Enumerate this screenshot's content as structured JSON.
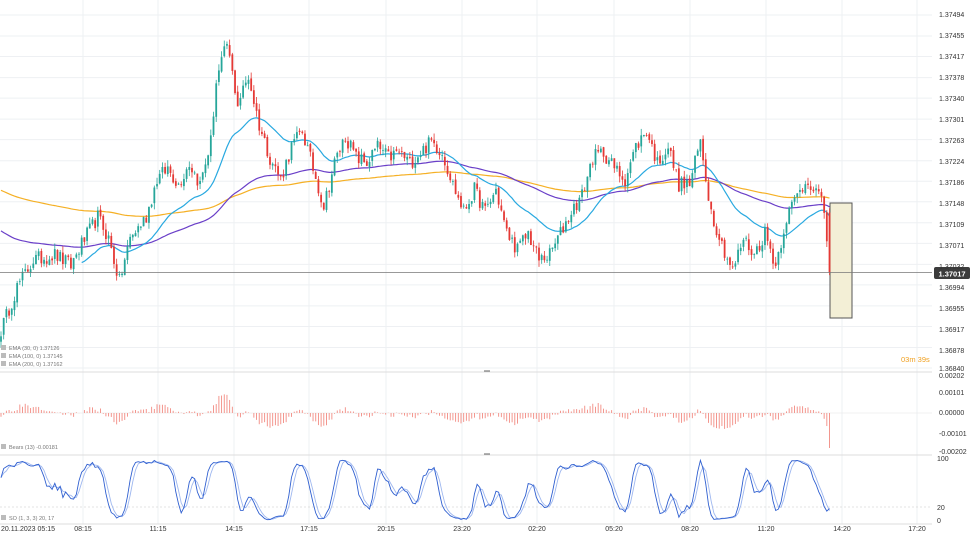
{
  "colors": {
    "bull": "#26a69a",
    "bear": "#e53935",
    "ema30": "#29a9e0",
    "ema100": "#6a3fc8",
    "ema200": "#f5b025",
    "bears_hist": "#f28b82",
    "so_k": "#2f5fd0",
    "so_d": "#9eb7ef",
    "grid": "#eef0f3",
    "axis_text": "#333333",
    "current_badge_bg": "#3c3c3c",
    "countdown": "#f0a020",
    "highlight_fill": "#f3efd6",
    "highlight_stroke": "#555555"
  },
  "main_chart": {
    "price_ticks": [
      "1.37494",
      "1.37455",
      "1.37417",
      "1.37378",
      "1.37340",
      "1.37301",
      "1.37263",
      "1.37224",
      "1.37186",
      "1.37148",
      "1.37109",
      "1.37071",
      "1.37032",
      "1.36994",
      "1.36955",
      "1.36917",
      "1.36878",
      "1.36840"
    ],
    "current_price": "1.37017",
    "countdown": "03m 39s",
    "legend": [
      "EMA (30, 0) 1.37126",
      "EMA (100, 0) 1.37145",
      "EMA (200, 0) 1.37162"
    ]
  },
  "time_axis": {
    "labels": [
      "20.11.2023 05:15",
      "08:15",
      "11:15",
      "14:15",
      "17:15",
      "20:15",
      "23:20",
      "02:20",
      "05:20",
      "08:20",
      "11:20",
      "14:20",
      "17:20"
    ]
  },
  "bears_panel": {
    "legend": "Bears (13) -0.00181",
    "ticks": [
      "0.00202",
      "0.00101",
      "0.00000",
      "-0.00101",
      "-0.00202"
    ]
  },
  "so_panel": {
    "legend": "SO (1, 3, 3) 20, 17",
    "ticks": [
      "100",
      "20",
      "0"
    ]
  },
  "chart_data": {
    "type": "candlestick",
    "x_labels": [
      "20.11.2023 05:15",
      "08:15",
      "11:15",
      "14:15",
      "17:15",
      "20:15",
      "23:20",
      "02:20",
      "05:20",
      "08:20",
      "11:20",
      "14:20",
      "17:20"
    ],
    "y_ticks": [
      1.37494,
      1.37455,
      1.37417,
      1.37378,
      1.3734,
      1.37301,
      1.37263,
      1.37224,
      1.37186,
      1.37148,
      1.37109,
      1.37071,
      1.37032,
      1.36994,
      1.36955,
      1.36917,
      1.36878,
      1.3684
    ],
    "ylim": [
      1.3684,
      1.37494
    ],
    "current_price": 1.37017,
    "close_anchors": [
      [
        0,
        1.3691
      ],
      [
        6,
        1.3699
      ],
      [
        12,
        1.3704
      ],
      [
        20,
        1.3705
      ],
      [
        26,
        1.3703
      ],
      [
        30,
        1.3707
      ],
      [
        36,
        1.3712
      ],
      [
        40,
        1.3708
      ],
      [
        44,
        1.37
      ],
      [
        48,
        1.3708
      ],
      [
        54,
        1.3712
      ],
      [
        58,
        1.3719
      ],
      [
        62,
        1.3721
      ],
      [
        66,
        1.3718
      ],
      [
        70,
        1.3722
      ],
      [
        74,
        1.3718
      ],
      [
        78,
        1.3726
      ],
      [
        80,
        1.3737
      ],
      [
        84,
        1.3744
      ],
      [
        88,
        1.3733
      ],
      [
        92,
        1.3738
      ],
      [
        96,
        1.3729
      ],
      [
        100,
        1.3723
      ],
      [
        104,
        1.3719
      ],
      [
        108,
        1.3725
      ],
      [
        112,
        1.3728
      ],
      [
        116,
        1.3721
      ],
      [
        120,
        1.3714
      ],
      [
        124,
        1.3722
      ],
      [
        128,
        1.3727
      ],
      [
        132,
        1.3723
      ],
      [
        136,
        1.3722
      ],
      [
        140,
        1.3725
      ],
      [
        144,
        1.3723
      ],
      [
        148,
        1.3724
      ],
      [
        152,
        1.3722
      ],
      [
        156,
        1.3724
      ],
      [
        160,
        1.3726
      ],
      [
        164,
        1.3724
      ],
      [
        168,
        1.3718
      ],
      [
        172,
        1.3713
      ],
      [
        176,
        1.3717
      ],
      [
        180,
        1.3713
      ],
      [
        184,
        1.3717
      ],
      [
        188,
        1.3709
      ],
      [
        192,
        1.3706
      ],
      [
        196,
        1.3709
      ],
      [
        200,
        1.3704
      ],
      [
        204,
        1.3705
      ],
      [
        208,
        1.3709
      ],
      [
        212,
        1.3713
      ],
      [
        216,
        1.3716
      ],
      [
        220,
        1.3723
      ],
      [
        224,
        1.3724
      ],
      [
        228,
        1.3721
      ],
      [
        232,
        1.3719
      ],
      [
        236,
        1.3725
      ],
      [
        240,
        1.3728
      ],
      [
        244,
        1.3722
      ],
      [
        248,
        1.3725
      ],
      [
        252,
        1.3718
      ],
      [
        256,
        1.3718
      ],
      [
        260,
        1.3726
      ],
      [
        264,
        1.3713
      ],
      [
        268,
        1.3707
      ],
      [
        272,
        1.3702
      ],
      [
        276,
        1.3708
      ],
      [
        280,
        1.3705
      ],
      [
        284,
        1.3709
      ],
      [
        288,
        1.3703
      ],
      [
        292,
        1.3712
      ],
      [
        296,
        1.3716
      ],
      [
        300,
        1.3719
      ],
      [
        304,
        1.3716
      ],
      [
        306,
        1.3713
      ],
      [
        308,
        1.3703
      ]
    ],
    "ema": [
      {
        "name": "EMA (30, 0)",
        "period": 30,
        "last_value": 1.37126
      },
      {
        "name": "EMA (100, 0)",
        "period": 100,
        "last_value": 1.37145
      },
      {
        "name": "EMA (200, 0)",
        "period": 200,
        "last_value": 1.37162
      }
    ],
    "indicators": [
      {
        "name": "Bears (13)",
        "last_value": -0.00181,
        "ylim": [
          -0.00202,
          0.00202
        ]
      },
      {
        "name": "SO (1, 3, 3)",
        "last_values": [
          20,
          17
        ],
        "ylim": [
          0,
          100
        ],
        "levels": [
          20
        ]
      }
    ]
  }
}
